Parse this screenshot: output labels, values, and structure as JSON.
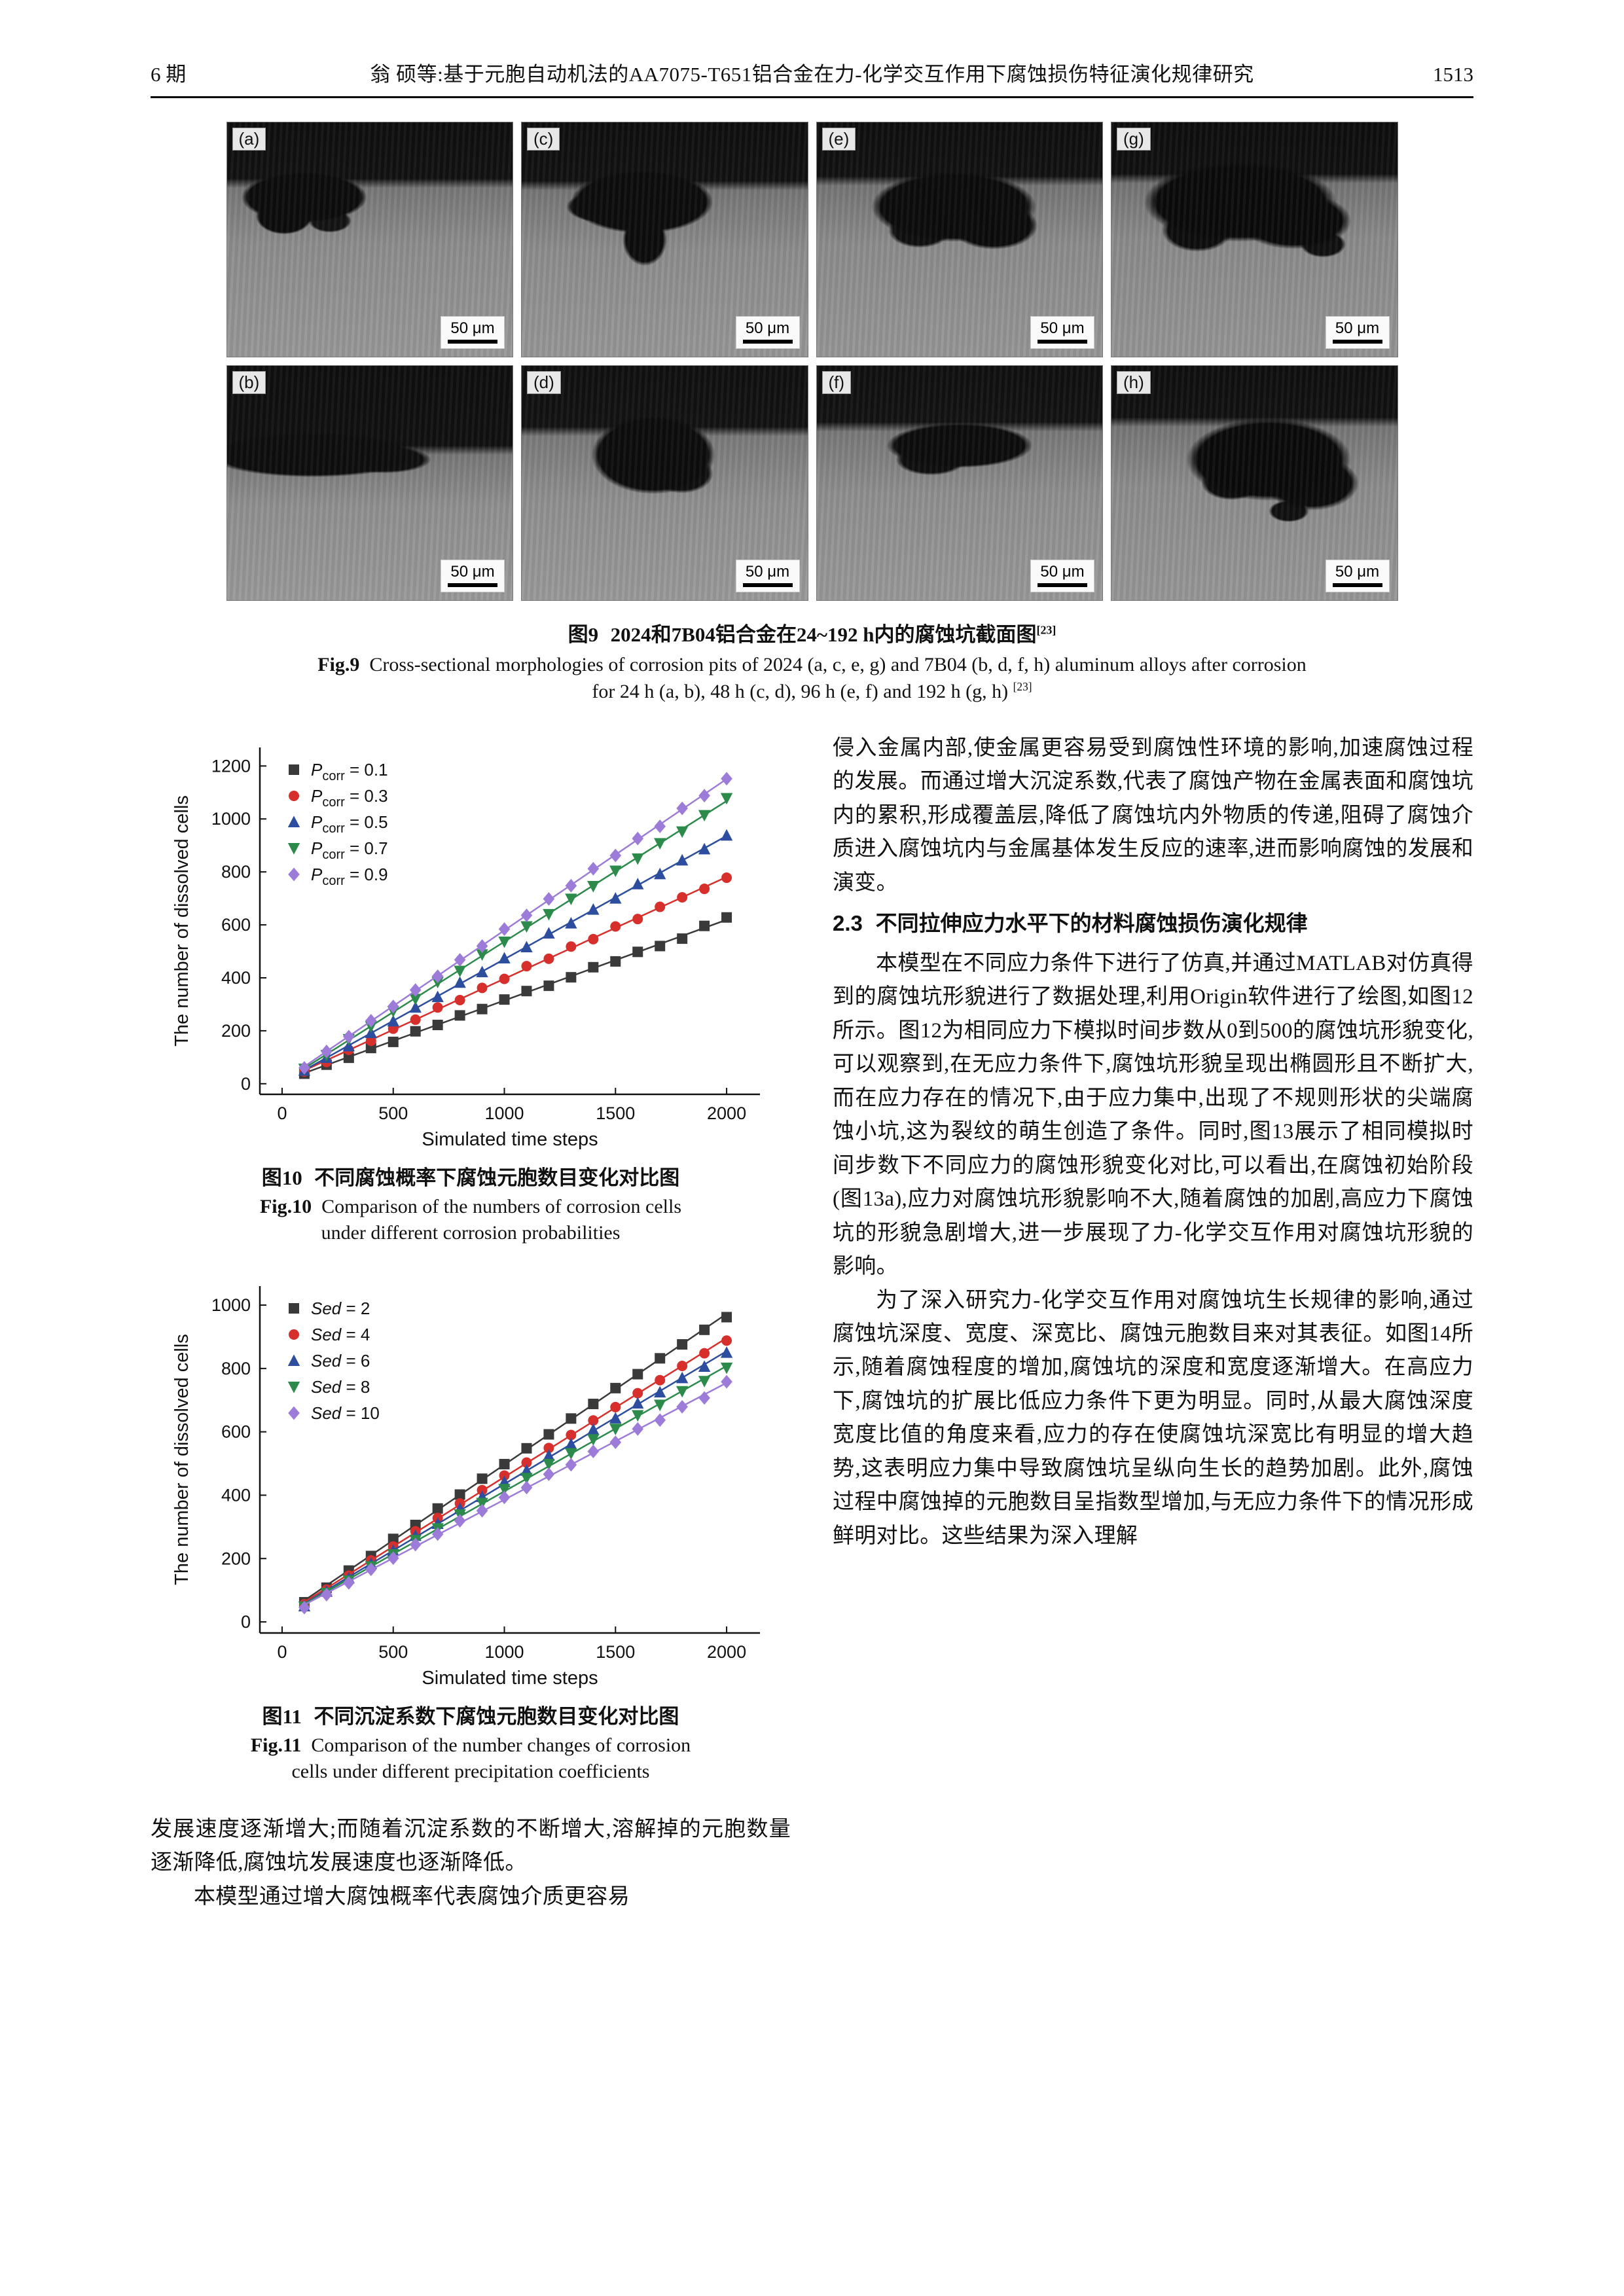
{
  "page": {
    "issue_label": "6 期",
    "running_title": "翁 硕等:基于元胞自动机法的AA7075-T651铝合金在力-化学交互作用下腐蚀损伤特征演化规律研究",
    "page_number": "1513"
  },
  "figure9": {
    "panels": [
      {
        "label": "(a)",
        "scale": "50 μm"
      },
      {
        "label": "(c)",
        "scale": "50 μm"
      },
      {
        "label": "(e)",
        "scale": "50 μm"
      },
      {
        "label": "(g)",
        "scale": "50 μm"
      },
      {
        "label": "(b)",
        "scale": "50 μm"
      },
      {
        "label": "(d)",
        "scale": "50 μm"
      },
      {
        "label": "(f)",
        "scale": "50 μm"
      },
      {
        "label": "(h)",
        "scale": "50 μm"
      }
    ],
    "caption_cn_label": "图9",
    "caption_cn_text": "2024和7B04铝合金在24~192 h内的腐蚀坑截面图",
    "caption_ref": "[23]",
    "caption_en_label": "Fig.9",
    "caption_en_line1": "Cross-sectional morphologies of corrosion pits of 2024 (a, c, e, g) and 7B04 (b, d, f, h) aluminum alloys after corrosion",
    "caption_en_line2": "for 24 h (a, b), 48 h (c, d), 96 h (e, f) and 192 h (g, h)",
    "caption_en_ref": "[23]"
  },
  "figure10": {
    "caption_cn_label": "图10",
    "caption_cn_text": "不同腐蚀概率下腐蚀元胞数目变化对比图",
    "caption_en_label": "Fig.10",
    "caption_en_line1": "Comparison of the numbers of corrosion cells",
    "caption_en_line2": "under different corrosion probabilities"
  },
  "figure11": {
    "caption_cn_label": "图11",
    "caption_cn_text": "不同沉淀系数下腐蚀元胞数目变化对比图",
    "caption_en_label": "Fig.11",
    "caption_en_line1": "Comparison of the number changes of corrosion",
    "caption_en_line2": "cells under different precipitation coefficients"
  },
  "chart_data": [
    {
      "type": "scatter",
      "title": "",
      "xlabel": "Simulated time steps",
      "ylabel": "The number of dissolved cells",
      "xlim": [
        -100,
        2150
      ],
      "ylim": [
        -40,
        1270
      ],
      "xticks": [
        0,
        500,
        1000,
        1500,
        2000
      ],
      "yticks": [
        0,
        200,
        400,
        600,
        800,
        1000,
        1200
      ],
      "grid": false,
      "legend_position": "top-left",
      "x": [
        100,
        200,
        300,
        400,
        500,
        600,
        700,
        800,
        900,
        1000,
        1100,
        1200,
        1300,
        1400,
        1500,
        1600,
        1700,
        1800,
        1900,
        2000
      ],
      "series": [
        {
          "label_main": "P",
          "label_sub": "corr",
          "label_rest": " = 0.1",
          "marker": "square",
          "color": "#3a3a3a",
          "values": [
            38,
            72,
            98,
            135,
            158,
            198,
            222,
            258,
            282,
            318,
            350,
            370,
            402,
            440,
            462,
            498,
            520,
            548,
            596,
            628
          ]
        },
        {
          "label_main": "P",
          "label_sub": "corr",
          "label_rest": " = 0.3",
          "marker": "circle",
          "color": "#d7302c",
          "values": [
            46,
            82,
            128,
            162,
            208,
            242,
            288,
            316,
            362,
            396,
            444,
            472,
            518,
            546,
            594,
            622,
            668,
            704,
            736,
            778
          ]
        },
        {
          "label_main": "P",
          "label_sub": "corr",
          "label_rest": " = 0.5",
          "marker": "triangle-up",
          "color": "#2d4e9e",
          "values": [
            50,
            98,
            142,
            192,
            236,
            288,
            328,
            382,
            422,
            474,
            516,
            568,
            606,
            658,
            700,
            754,
            792,
            844,
            886,
            938
          ]
        },
        {
          "label_main": "P",
          "label_sub": "corr",
          "label_rest": " = 0.7",
          "marker": "triangle-down",
          "color": "#2c8a4b",
          "values": [
            56,
            108,
            168,
            216,
            274,
            320,
            384,
            426,
            488,
            536,
            594,
            640,
            698,
            746,
            804,
            850,
            908,
            952,
            1014,
            1078
          ]
        },
        {
          "label_main": "P",
          "label_sub": "corr",
          "label_rest": " = 0.9",
          "marker": "diamond",
          "color": "#9d7bd8",
          "values": [
            60,
            122,
            178,
            238,
            292,
            354,
            406,
            468,
            520,
            584,
            636,
            698,
            748,
            812,
            862,
            926,
            972,
            1040,
            1088,
            1152
          ]
        }
      ]
    },
    {
      "type": "scatter",
      "title": "",
      "xlabel": "Simulated time steps",
      "ylabel": "The number of dissolved cells",
      "xlim": [
        -100,
        2150
      ],
      "ylim": [
        -35,
        1060
      ],
      "xticks": [
        0,
        500,
        1000,
        1500,
        2000
      ],
      "yticks": [
        0,
        200,
        400,
        600,
        800,
        1000
      ],
      "grid": false,
      "legend_position": "top-left",
      "x": [
        100,
        200,
        300,
        400,
        500,
        600,
        700,
        800,
        900,
        1000,
        1100,
        1200,
        1300,
        1400,
        1500,
        1600,
        1700,
        1800,
        1900,
        2000
      ],
      "series": [
        {
          "label_main": "Sed",
          "label_sub": "",
          "label_rest": " = 2",
          "marker": "square",
          "color": "#3a3a3a",
          "values": [
            62,
            108,
            162,
            208,
            262,
            306,
            358,
            402,
            452,
            498,
            548,
            592,
            642,
            688,
            738,
            782,
            832,
            876,
            922,
            962
          ]
        },
        {
          "label_main": "Sed",
          "label_sub": "",
          "label_rest": " = 4",
          "marker": "circle",
          "color": "#d7302c",
          "values": [
            56,
            102,
            146,
            194,
            238,
            286,
            328,
            374,
            416,
            462,
            503,
            549,
            590,
            636,
            678,
            722,
            763,
            808,
            848,
            888
          ]
        },
        {
          "label_main": "Sed",
          "label_sub": "",
          "label_rest": " = 6",
          "marker": "triangle-up",
          "color": "#2d4e9e",
          "values": [
            50,
            96,
            138,
            184,
            225,
            272,
            310,
            357,
            395,
            442,
            478,
            525,
            561,
            607,
            643,
            690,
            725,
            770,
            806,
            850
          ]
        },
        {
          "label_main": "Sed",
          "label_sub": "",
          "label_rest": " = 8",
          "marker": "triangle-down",
          "color": "#2c8a4b",
          "values": [
            48,
            91,
            130,
            175,
            213,
            258,
            295,
            339,
            375,
            419,
            454,
            498,
            532,
            576,
            609,
            652,
            685,
            728,
            760,
            802
          ]
        },
        {
          "label_main": "Sed",
          "label_sub": "",
          "label_rest": " = 10",
          "marker": "diamond",
          "color": "#9d7bd8",
          "values": [
            45,
            86,
            123,
            166,
            201,
            244,
            277,
            319,
            351,
            393,
            424,
            466,
            496,
            538,
            567,
            609,
            637,
            679,
            707,
            758
          ]
        }
      ]
    }
  ],
  "left_text": {
    "p1": "发展速度逐渐增大;而随着沉淀系数的不断增大,溶解掉的元胞数量逐渐降低,腐蚀坑发展速度也逐渐降低。",
    "p2": "本模型通过增大腐蚀概率代表腐蚀介质更容易"
  },
  "right_text": {
    "p1": "侵入金属内部,使金属更容易受到腐蚀性环境的影响,加速腐蚀过程的发展。而通过增大沉淀系数,代表了腐蚀产物在金属表面和腐蚀坑内的累积,形成覆盖层,降低了腐蚀坑内外物质的传递,阻碍了腐蚀介质进入腐蚀坑内与金属基体发生反应的速率,进而影响腐蚀的发展和演变。",
    "heading_num": "2.3",
    "heading_title": "不同拉伸应力水平下的材料腐蚀损伤演化规律",
    "p2": "本模型在不同应力条件下进行了仿真,并通过MATLAB对仿真得到的腐蚀坑形貌进行了数据处理,利用Origin软件进行了绘图,如图12所示。图12为相同应力下模拟时间步数从0到500的腐蚀坑形貌变化,可以观察到,在无应力条件下,腐蚀坑形貌呈现出椭圆形且不断扩大,而在应力存在的情况下,由于应力集中,出现了不规则形状的尖端腐蚀小坑,这为裂纹的萌生创造了条件。同时,图13展示了相同模拟时间步数下不同应力的腐蚀形貌变化对比,可以看出,在腐蚀初始阶段(图13a),应力对腐蚀坑形貌影响不大,随着腐蚀的加剧,高应力下腐蚀坑的形貌急剧增大,进一步展现了力-化学交互作用对腐蚀坑形貌的影响。",
    "p3": "为了深入研究力-化学交互作用对腐蚀坑生长规律的影响,通过腐蚀坑深度、宽度、深宽比、腐蚀元胞数目来对其表征。如图14所示,随着腐蚀程度的增加,腐蚀坑的深度和宽度逐渐增大。在高应力下,腐蚀坑的扩展比低应力条件下更为明显。同时,从最大腐蚀深度宽度比值的角度来看,应力的存在使腐蚀坑深宽比有明显的增大趋势,这表明应力集中导致腐蚀坑呈纵向生长的趋势加剧。此外,腐蚀过程中腐蚀掉的元胞数目呈指数型增加,与无应力条件下的情况形成鲜明对比。这些结果为深入理解"
  }
}
